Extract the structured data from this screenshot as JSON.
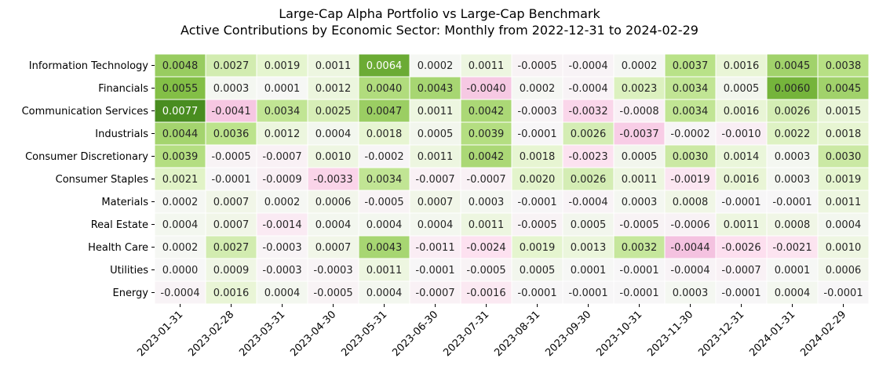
{
  "chart_data": {
    "type": "heatmap",
    "title": "Large-Cap Alpha Portfolio vs Large-Cap Benchmark",
    "subtitle": "Active Contributions by Economic Sector: Monthly from 2022-12-31 to 2024-02-29",
    "x_categories": [
      "2023-01-31",
      "2023-02-28",
      "2023-03-31",
      "2023-04-30",
      "2023-05-31",
      "2023-06-30",
      "2023-07-31",
      "2023-08-31",
      "2023-09-30",
      "2023-10-31",
      "2023-11-30",
      "2023-12-31",
      "2024-01-31",
      "2024-02-29"
    ],
    "y_categories": [
      "Information Technology",
      "Financials",
      "Communication Services",
      "Industrials",
      "Consumer Discretionary",
      "Consumer Staples",
      "Materials",
      "Real Estate",
      "Health Care",
      "Utilities",
      "Energy"
    ],
    "values": [
      [
        "0.0048",
        "0.0027",
        "0.0019",
        "0.0011",
        "0.0064",
        "0.0002",
        "0.0011",
        "-0.0005",
        "-0.0004",
        "0.0002",
        "0.0037",
        "0.0016",
        "0.0045",
        "0.0038"
      ],
      [
        "0.0055",
        "0.0003",
        "0.0001",
        "0.0012",
        "0.0040",
        "0.0043",
        "-0.0040",
        "0.0002",
        "-0.0004",
        "0.0023",
        "0.0034",
        "0.0005",
        "0.0060",
        "0.0045"
      ],
      [
        "0.0077",
        "-0.0041",
        "0.0034",
        "0.0025",
        "0.0047",
        "0.0011",
        "0.0042",
        "-0.0003",
        "-0.0032",
        "-0.0008",
        "0.0034",
        "0.0016",
        "0.0026",
        "0.0015"
      ],
      [
        "0.0044",
        "0.0036",
        "0.0012",
        "0.0004",
        "0.0018",
        "0.0005",
        "0.0039",
        "-0.0001",
        "0.0026",
        "-0.0037",
        "-0.0002",
        "-0.0010",
        "0.0022",
        "0.0018"
      ],
      [
        "0.0039",
        "-0.0005",
        "-0.0007",
        "0.0010",
        "-0.0002",
        "0.0011",
        "0.0042",
        "0.0018",
        "-0.0023",
        "0.0005",
        "0.0030",
        "0.0014",
        "0.0003",
        "0.0030"
      ],
      [
        "0.0021",
        "-0.0001",
        "-0.0009",
        "-0.0033",
        "0.0034",
        "-0.0007",
        "-0.0007",
        "0.0020",
        "0.0026",
        "0.0011",
        "-0.0019",
        "0.0016",
        "0.0003",
        "0.0019"
      ],
      [
        "0.0002",
        "0.0007",
        "0.0002",
        "0.0006",
        "-0.0005",
        "0.0007",
        "0.0003",
        "-0.0001",
        "-0.0004",
        "0.0003",
        "0.0008",
        "-0.0001",
        "-0.0001",
        "0.0011"
      ],
      [
        "0.0004",
        "0.0007",
        "-0.0014",
        "0.0004",
        "0.0004",
        "0.0004",
        "0.0011",
        "-0.0005",
        "0.0005",
        "-0.0005",
        "-0.0006",
        "0.0011",
        "0.0008",
        "0.0004"
      ],
      [
        "0.0002",
        "0.0027",
        "-0.0003",
        "0.0007",
        "0.0043",
        "-0.0011",
        "-0.0024",
        "0.0019",
        "0.0013",
        "0.0032",
        "-0.0044",
        "-0.0026",
        "-0.0021",
        "0.0010"
      ],
      [
        "0.0000",
        "0.0009",
        "-0.0003",
        "-0.0003",
        "0.0011",
        "-0.0001",
        "-0.0005",
        "0.0005",
        "0.0001",
        "-0.0001",
        "-0.0004",
        "-0.0007",
        "0.0001",
        "0.0006"
      ],
      [
        "-0.0004",
        "0.0016",
        "0.0004",
        "-0.0005",
        "0.0004",
        "-0.0007",
        "-0.0016",
        "-0.0001",
        "-0.0001",
        "-0.0001",
        "0.0003",
        "-0.0001",
        "0.0004",
        "-0.0001"
      ]
    ],
    "colormap": "PiYG",
    "colorbar": false,
    "grid": false,
    "legend": "none",
    "colors": {
      "positive_max": "#4d9221",
      "neutral": "#f7f7f7",
      "negative_max": "#de77ae",
      "cell_border": "#ffffff"
    }
  }
}
